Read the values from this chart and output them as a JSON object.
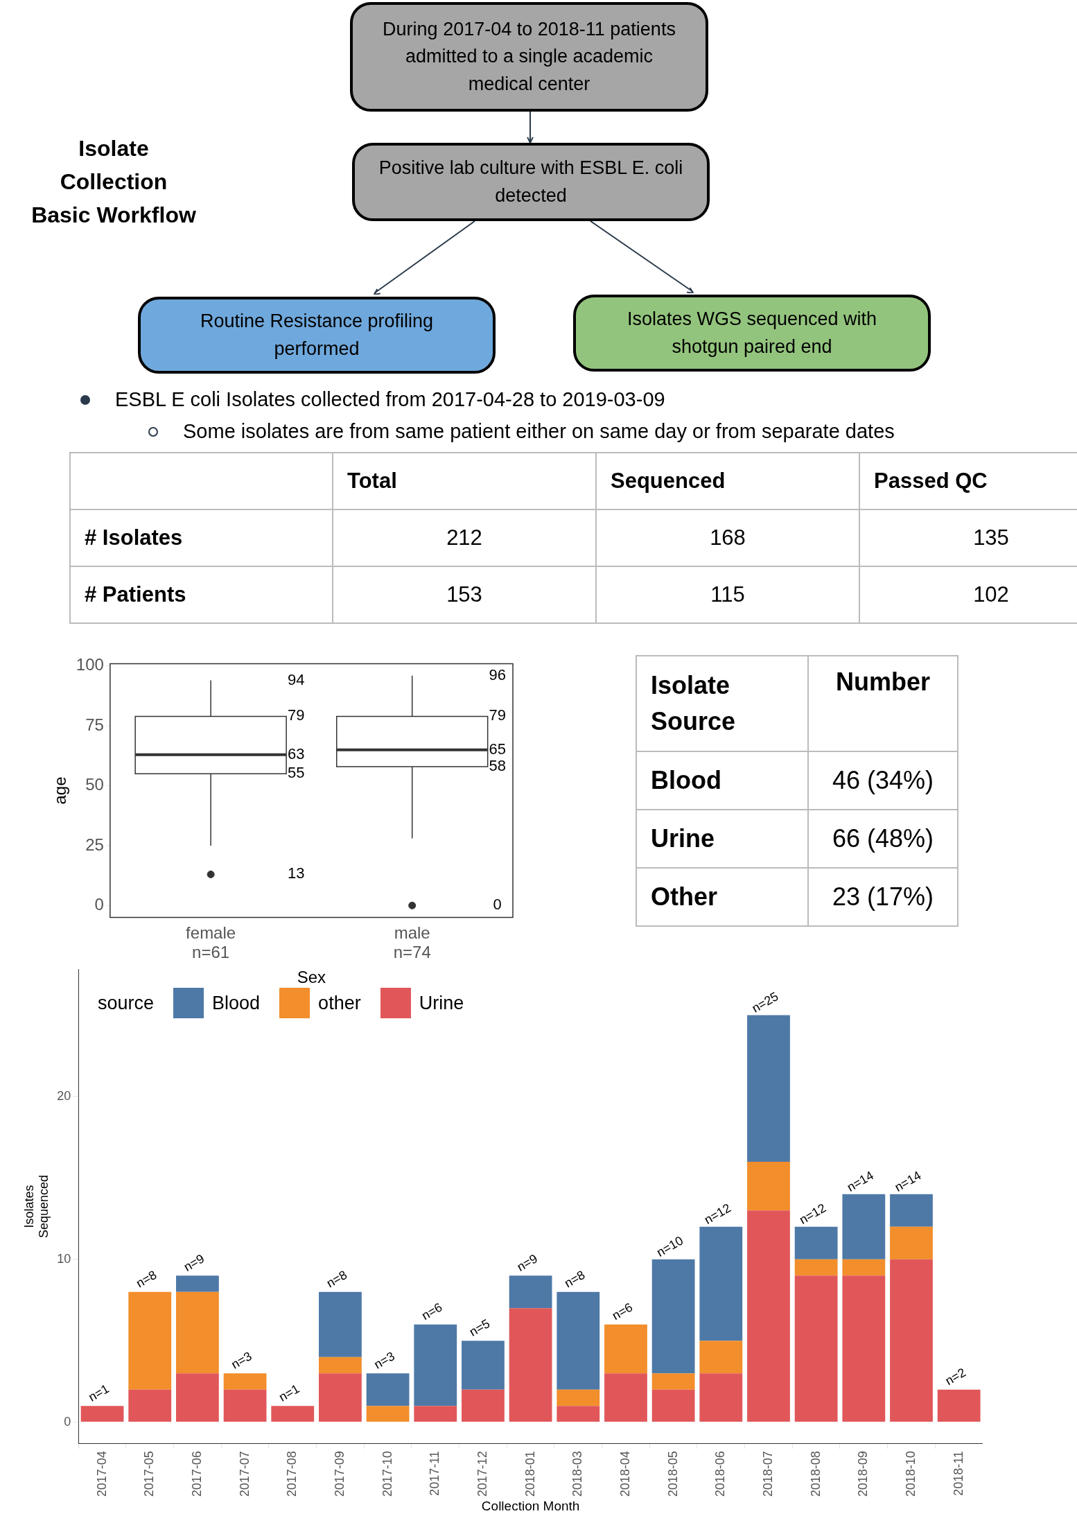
{
  "chart_data": [
    {
      "type": "other",
      "title": "Isolate Collection Basic Workflow",
      "annotations": [
        "During 2017-04 to 2018-11 patients admitted to a single academic medical center",
        "Positive lab culture with ESBL E. coli detected",
        "Routine Resistance profiling performed",
        "Isolates WGS sequenced with shotgun paired end",
        "ESBL E coli Isolates collected from 2017-04-28 to 2019-03-09",
        "Some isolates are from same patient either on same day or from separate dates"
      ]
    },
    {
      "type": "other",
      "annotations": [
        "Total",
        "Sequenced",
        "Passed QC",
        "# Isolates",
        "212",
        "168",
        "135",
        "# Patients",
        "153",
        "115",
        "102"
      ]
    },
    {
      "type": "box",
      "categories": [
        "female\nn=61",
        "male\nn=74"
      ],
      "xlabel": "Sex",
      "ylabel": "age",
      "ylim": [
        -5,
        101
      ],
      "yticks": [
        0,
        25,
        50,
        75,
        100
      ],
      "boxes": [
        {
          "low": 25,
          "q1": 55,
          "median": 63,
          "q3": 79,
          "high": 94,
          "outliers": [
            13
          ]
        },
        {
          "low": 28,
          "q1": 58,
          "median": 65,
          "q3": 79,
          "high": 96,
          "outliers": [
            0
          ]
        }
      ],
      "annotations": [
        "94",
        "79",
        "63",
        "55",
        "13",
        "96",
        "79",
        "65",
        "58",
        "0"
      ]
    },
    {
      "type": "other",
      "xlabel": "Isolate Source",
      "ylabel": "Number",
      "categories": [
        "Blood",
        "Urine",
        "Other"
      ],
      "value_labels": [
        "46 (34%)",
        "66 (48%)",
        "23 (17%)"
      ]
    },
    {
      "type": "bar",
      "stacked": true,
      "xlabel": "Collection Month",
      "ylabel": "Isolates Sequenced",
      "legend_title": "source",
      "legend": "top left",
      "categories": [
        "2017-04",
        "2017-05",
        "2017-06",
        "2017-07",
        "2017-08",
        "2017-09",
        "2017-10",
        "2017-11",
        "2017-12",
        "2018-01",
        "2018-03",
        "2018-04",
        "2018-05",
        "2018-06",
        "2018-07",
        "2018-08",
        "2018-09",
        "2018-10",
        "2018-11"
      ],
      "ylim": [
        -1.3,
        27.8
      ],
      "yticks": [
        0,
        10,
        20
      ],
      "series": [
        {
          "name": "Urine",
          "color": "#e15759",
          "values": [
            1,
            2,
            3,
            2,
            1,
            3,
            0,
            1,
            2,
            7,
            1,
            3,
            2,
            3,
            13,
            9,
            9,
            10,
            2
          ]
        },
        {
          "name": "other",
          "color": "#f28e2b",
          "values": [
            0,
            6,
            5,
            1,
            0,
            1,
            1,
            0,
            0,
            0,
            1,
            3,
            1,
            2,
            3,
            1,
            1,
            2,
            0
          ]
        },
        {
          "name": "Blood",
          "color": "#4e79a7",
          "values": [
            0,
            0,
            1,
            0,
            0,
            4,
            2,
            5,
            3,
            2,
            6,
            0,
            7,
            7,
            9,
            2,
            4,
            2,
            0
          ]
        }
      ],
      "totals": [
        "n=1",
        "n=8",
        "n=9",
        "n=3",
        "n=1",
        "n=8",
        "n=3",
        "n=6",
        "n=5",
        "n=9",
        "n=8",
        "n=6",
        "n=10",
        "n=12",
        "n=25",
        "n=12",
        "n=14",
        "n=14",
        "n=2"
      ]
    }
  ]
}
